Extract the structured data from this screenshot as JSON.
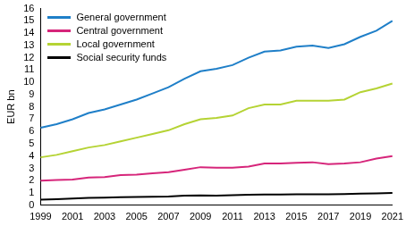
{
  "chart_data": {
    "type": "line",
    "y_label": "EUR bn",
    "categories": [
      "1999",
      null,
      "2001",
      null,
      "2003",
      null,
      "2005",
      null,
      "2007",
      null,
      "2009",
      null,
      "2011",
      null,
      "2013",
      null,
      "2015",
      null,
      "2017",
      null,
      "2019",
      null,
      "2021"
    ],
    "series": [
      {
        "name": "General government",
        "color": "#1f7fc8",
        "values": [
          6.3,
          6.6,
          7.0,
          7.5,
          7.8,
          8.2,
          8.6,
          9.1,
          9.6,
          10.3,
          10.9,
          11.1,
          11.4,
          12.0,
          12.5,
          12.6,
          12.9,
          13.0,
          12.8,
          13.1,
          13.7,
          14.2,
          15.0
        ]
      },
      {
        "name": "Central government",
        "color": "#d6257a",
        "values": [
          2.0,
          2.05,
          2.1,
          2.25,
          2.3,
          2.45,
          2.5,
          2.6,
          2.7,
          2.9,
          3.1,
          3.05,
          3.05,
          3.15,
          3.4,
          3.4,
          3.45,
          3.5,
          3.35,
          3.4,
          3.5,
          3.8,
          4.0
        ]
      },
      {
        "name": "Local government",
        "color": "#b5d334",
        "values": [
          3.9,
          4.1,
          4.4,
          4.7,
          4.9,
          5.2,
          5.5,
          5.8,
          6.1,
          6.6,
          7.0,
          7.1,
          7.3,
          7.9,
          8.2,
          8.2,
          8.5,
          8.5,
          8.5,
          8.6,
          9.2,
          9.5,
          9.9
        ]
      },
      {
        "name": "Social security funds",
        "color": "#000000",
        "values": [
          0.45,
          0.5,
          0.55,
          0.6,
          0.62,
          0.65,
          0.68,
          0.7,
          0.72,
          0.78,
          0.8,
          0.78,
          0.82,
          0.85,
          0.88,
          0.88,
          0.9,
          0.9,
          0.9,
          0.92,
          0.95,
          0.97,
          1.0
        ]
      }
    ],
    "ylim": [
      0,
      16
    ],
    "yticks": [
      0,
      1,
      2,
      3,
      4,
      5,
      6,
      7,
      8,
      9,
      10,
      11,
      12,
      13,
      14,
      15,
      16
    ],
    "grid": false,
    "legend": "upper left"
  }
}
